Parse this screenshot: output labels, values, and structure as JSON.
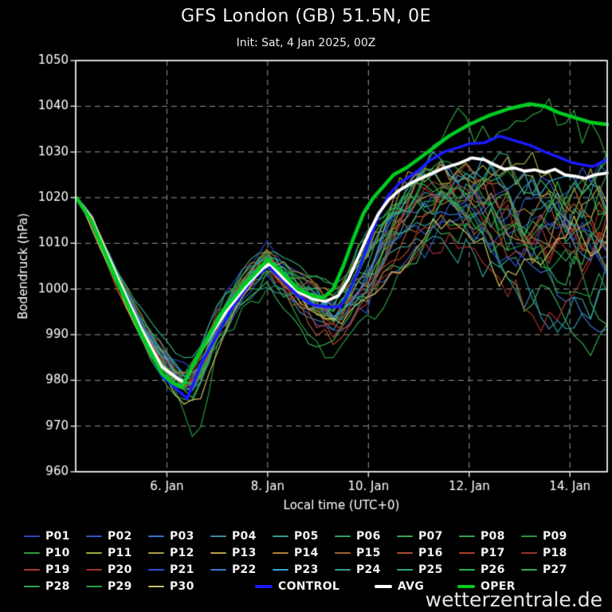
{
  "page": {
    "background": "#000000",
    "watermark": "wetterzentrale.de"
  },
  "header": {
    "title": "GFS London (GB) 51.5N, 0E",
    "subtitle": "Init: Sat, 4 Jan 2025, 00Z"
  },
  "chart_data": {
    "type": "line",
    "title": "GFS London (GB) 51.5N, 0E",
    "subtitle": "Init: Sat, 4 Jan 2025, 00Z",
    "xlabel": "Local time (UTC+0)",
    "ylabel": "Bodendruck (hPa)",
    "x_unit": "day of January 2025",
    "xlim": [
      4.19,
      14.74
    ],
    "ylim": [
      960,
      1050
    ],
    "grid": true,
    "legend_position": "bottom",
    "x_ticks": [
      {
        "value": 6,
        "label": "6. Jan"
      },
      {
        "value": 8,
        "label": "8. Jan"
      },
      {
        "value": 10,
        "label": "10. Jan"
      },
      {
        "value": 12,
        "label": "12. Jan"
      },
      {
        "value": 14,
        "label": "14. Jan"
      }
    ],
    "y_ticks": [
      960,
      970,
      980,
      990,
      1000,
      1010,
      1020,
      1030,
      1040,
      1050
    ],
    "series": [
      {
        "name": "OPER",
        "color": "#00cc22",
        "width": 4.5,
        "x": [
          4.2,
          4.5,
          5.0,
          5.5,
          5.9,
          6.1,
          6.3,
          6.5,
          6.8,
          7.1,
          7.5,
          7.8,
          8.0,
          8.3,
          8.6,
          8.9,
          9.1,
          9.3,
          9.5,
          9.7,
          9.9,
          10.1,
          10.3,
          10.5,
          10.75,
          11.0,
          11.3,
          11.6,
          12.0,
          12.4,
          12.8,
          13.2,
          13.5,
          13.8,
          14.1,
          14.4,
          14.74
        ],
        "y": [
          1020,
          1015,
          1002,
          990,
          981.5,
          979.5,
          978.5,
          983,
          989,
          995,
          1000.5,
          1004,
          1006.5,
          1003.5,
          1000,
          998.5,
          998,
          1000,
          1005,
          1011,
          1016.5,
          1020,
          1022.5,
          1025,
          1026.5,
          1028.5,
          1031,
          1033.5,
          1036,
          1038,
          1039.5,
          1040.5,
          1040,
          1038.5,
          1037.5,
          1036.5,
          1036
        ]
      },
      {
        "name": "AVG",
        "color": "#ffffff",
        "width": 3.8,
        "x": [
          4.2,
          4.5,
          5.0,
          5.5,
          5.9,
          6.2,
          6.35,
          6.6,
          6.9,
          7.2,
          7.6,
          7.9,
          8.05,
          8.3,
          8.6,
          8.9,
          9.15,
          9.4,
          9.6,
          9.8,
          10.0,
          10.2,
          10.4,
          10.6,
          10.9,
          11.2,
          11.5,
          11.8,
          12.05,
          12.3,
          12.5,
          12.7,
          12.9,
          13.1,
          13.3,
          13.5,
          13.7,
          13.9,
          14.1,
          14.3,
          14.5,
          14.74
        ],
        "y": [
          1020,
          1015.5,
          1003,
          991,
          983,
          980.5,
          979.5,
          985,
          990.5,
          995.5,
          1001,
          1004.5,
          1005.5,
          1002.5,
          999.5,
          997.8,
          997.3,
          998.5,
          1002,
          1007,
          1012,
          1016.5,
          1019.5,
          1021.5,
          1023.5,
          1025,
          1026.5,
          1027.5,
          1028.7,
          1028.3,
          1027.2,
          1026.2,
          1026.5,
          1025.8,
          1026.1,
          1025.5,
          1026.2,
          1025,
          1024.7,
          1024.2,
          1025,
          1025.4
        ]
      },
      {
        "name": "CONTROL",
        "color": "#1a1aff",
        "width": 3.5,
        "x": [
          4.2,
          4.5,
          5.0,
          5.5,
          5.9,
          6.2,
          6.4,
          6.7,
          7.0,
          7.3,
          7.7,
          8.0,
          8.3,
          8.6,
          8.9,
          9.2,
          9.45,
          9.6,
          9.8,
          10.0,
          10.2,
          10.4,
          10.6,
          10.8,
          11.0,
          11.2,
          11.5,
          11.8,
          12.0,
          12.3,
          12.6,
          12.9,
          13.2,
          13.5,
          13.8,
          14.0,
          14.2,
          14.45,
          14.6,
          14.74
        ],
        "y": [
          1020,
          1015,
          1002.5,
          990,
          981,
          978,
          976,
          984,
          990,
          996,
          1002,
          1005,
          1002,
          998.5,
          996.5,
          996,
          996.2,
          999,
          1004,
          1010,
          1016,
          1020.5,
          1023,
          1024.5,
          1026,
          1028,
          1030,
          1031,
          1031.8,
          1032,
          1033.5,
          1032.5,
          1031.5,
          1030,
          1028.8,
          1027.8,
          1027.3,
          1026.8,
          1027.6,
          1028.3
        ]
      }
    ],
    "ensemble": {
      "envelope": {
        "day": [
          4.2,
          4.5,
          5.0,
          5.5,
          6.0,
          6.3,
          6.6,
          7.0,
          7.5,
          8.0,
          8.5,
          9.0,
          9.25,
          9.6,
          10.0,
          10.5,
          11.0,
          11.5,
          12.0,
          12.5,
          13.0,
          13.5,
          14.0,
          14.4,
          14.74
        ],
        "min": [
          1020,
          1013,
          999,
          986,
          977,
          974,
          972,
          983,
          993,
          999,
          992,
          985,
          983,
          986,
          990,
          999,
          1003,
          1004,
          1001,
          996,
          991,
          987,
          984,
          983,
          985
        ],
        "max": [
          1020,
          1017.5,
          1006,
          996,
          989,
          985,
          987,
          1000,
          1008,
          1012,
          1008,
          1006,
          1004,
          1009,
          1018,
          1027,
          1034,
          1038,
          1040,
          1041.5,
          1042,
          1041,
          1042,
          1043,
          1044
        ]
      },
      "outlier_dip": {
        "member": "P09",
        "day": 6.55,
        "value": 966.5
      },
      "members": [
        {
          "name": "P01",
          "color": "#2e44b8",
          "seed": 11
        },
        {
          "name": "P02",
          "color": "#3353c2",
          "seed": 23
        },
        {
          "name": "P03",
          "color": "#3a6fd0",
          "seed": 5
        },
        {
          "name": "P04",
          "color": "#3b8ba0",
          "seed": 17
        },
        {
          "name": "P05",
          "color": "#2f9e8e",
          "seed": 42
        },
        {
          "name": "P06",
          "color": "#2f9f68",
          "seed": 8
        },
        {
          "name": "P07",
          "color": "#35aa50",
          "seed": 29
        },
        {
          "name": "P08",
          "color": "#2fa449",
          "seed": 3
        },
        {
          "name": "P09",
          "color": "#28963f",
          "seed": 61
        },
        {
          "name": "P10",
          "color": "#2f9c3c",
          "seed": 14
        },
        {
          "name": "P11",
          "color": "#a0aa38",
          "seed": 33
        },
        {
          "name": "P12",
          "color": "#ae9c46",
          "seed": 7
        },
        {
          "name": "P13",
          "color": "#bb9a4c",
          "seed": 51
        },
        {
          "name": "P14",
          "color": "#b07c36",
          "seed": 19
        },
        {
          "name": "P15",
          "color": "#a2622e",
          "seed": 27
        },
        {
          "name": "P16",
          "color": "#a84e2e",
          "seed": 45
        },
        {
          "name": "P17",
          "color": "#ac3e28",
          "seed": 9
        },
        {
          "name": "P18",
          "color": "#9e2f2f",
          "seed": 36
        },
        {
          "name": "P19",
          "color": "#b43434",
          "seed": 58
        },
        {
          "name": "P20",
          "color": "#a62c2c",
          "seed": 21
        },
        {
          "name": "P21",
          "color": "#2f52d0",
          "seed": 13
        },
        {
          "name": "P22",
          "color": "#3a7ec6",
          "seed": 47
        },
        {
          "name": "P23",
          "color": "#38a6d2",
          "seed": 31
        },
        {
          "name": "P24",
          "color": "#339c9c",
          "seed": 2
        },
        {
          "name": "P25",
          "color": "#35a478",
          "seed": 39
        },
        {
          "name": "P26",
          "color": "#30b054",
          "seed": 25
        },
        {
          "name": "P27",
          "color": "#2eae4a",
          "seed": 55
        },
        {
          "name": "P28",
          "color": "#33a850",
          "seed": 16
        },
        {
          "name": "P29",
          "color": "#2a9e44",
          "seed": 49
        },
        {
          "name": "P30",
          "color": "#ccc462",
          "seed": 6
        }
      ]
    },
    "legend_order_tail": [
      "CONTROL",
      "AVG",
      "OPER"
    ]
  }
}
